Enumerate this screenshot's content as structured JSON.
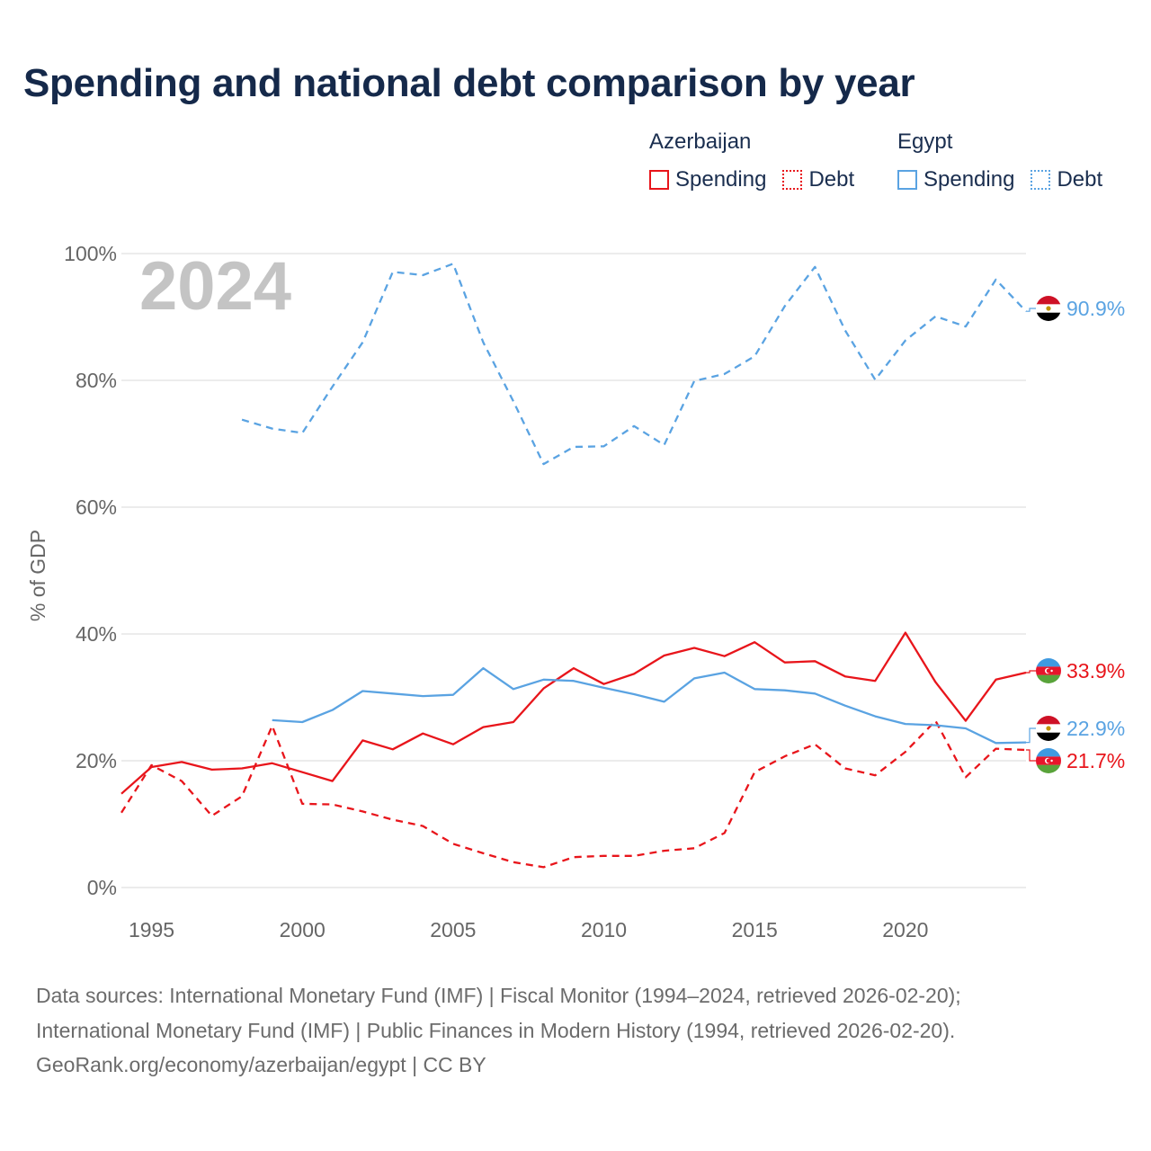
{
  "title": "Spending and national debt comparison by year",
  "legend": {
    "groups": [
      {
        "name": "Azerbaijan",
        "spending_label": "Spending",
        "debt_label": "Debt",
        "color": "#e8151b"
      },
      {
        "name": "Egypt",
        "spending_label": "Spending",
        "debt_label": "Debt",
        "color": "#5aa3e2"
      }
    ]
  },
  "year_watermark": "2024",
  "sources": {
    "line1": "Data sources: International Monetary Fund (IMF) | Fiscal Monitor (1994–2024, retrieved 2026-02-20);",
    "line2": "International Monetary Fund (IMF) | Public Finances in Modern History (1994, retrieved 2026-02-20).",
    "line3": "GeoRank.org/economy/azerbaijan/egypt | CC BY"
  },
  "chart_data": {
    "type": "line",
    "title": "Spending and national debt comparison by year",
    "xlabel": "",
    "ylabel": "% of GDP",
    "xlim": [
      1994,
      2024
    ],
    "ylim": [
      0,
      100
    ],
    "x_ticks": [
      1995,
      2000,
      2005,
      2010,
      2015,
      2020
    ],
    "y_ticks": [
      0,
      20,
      40,
      60,
      80,
      100
    ],
    "y_tick_labels": [
      "0%",
      "20%",
      "40%",
      "60%",
      "80%",
      "100%"
    ],
    "grid": true,
    "series": [
      {
        "name": "Azerbaijan Spending",
        "country": "Azerbaijan",
        "metric": "Spending",
        "color": "#e8151b",
        "dashed": false,
        "end_label": "33.9%",
        "x": [
          1994,
          1995,
          1996,
          1997,
          1998,
          1999,
          2000,
          2001,
          2002,
          2003,
          2004,
          2005,
          2006,
          2007,
          2008,
          2009,
          2010,
          2011,
          2012,
          2013,
          2014,
          2015,
          2016,
          2017,
          2018,
          2019,
          2020,
          2021,
          2022,
          2023,
          2024
        ],
        "values": [
          14.8,
          19.0,
          19.8,
          18.6,
          18.8,
          19.6,
          18.2,
          16.8,
          23.2,
          21.8,
          24.3,
          22.6,
          25.3,
          26.1,
          31.4,
          34.6,
          32.1,
          33.7,
          36.6,
          37.8,
          36.5,
          38.7,
          35.5,
          35.7,
          33.3,
          32.6,
          40.2,
          32.4,
          26.3,
          32.8,
          33.9
        ]
      },
      {
        "name": "Azerbaijan Debt",
        "country": "Azerbaijan",
        "metric": "Debt",
        "color": "#e8151b",
        "dashed": true,
        "end_label": "21.7%",
        "x": [
          1994,
          1995,
          1996,
          1997,
          1998,
          1999,
          2000,
          2001,
          2002,
          2003,
          2004,
          2005,
          2006,
          2007,
          2008,
          2009,
          2010,
          2011,
          2012,
          2013,
          2014,
          2015,
          2016,
          2017,
          2018,
          2019,
          2020,
          2021,
          2022,
          2023,
          2024
        ],
        "values": [
          11.8,
          19.3,
          16.8,
          11.3,
          14.4,
          25.5,
          13.2,
          13.1,
          12.0,
          10.7,
          9.7,
          6.9,
          5.4,
          4.0,
          3.2,
          4.8,
          5.0,
          5.0,
          5.8,
          6.2,
          8.6,
          18.2,
          20.7,
          22.6,
          18.8,
          17.7,
          21.4,
          26.3,
          17.4,
          21.9,
          21.7
        ]
      },
      {
        "name": "Egypt Spending",
        "country": "Egypt",
        "metric": "Spending",
        "color": "#5aa3e2",
        "dashed": false,
        "end_label": "22.9%",
        "x": [
          1999,
          2000,
          2001,
          2002,
          2003,
          2004,
          2005,
          2006,
          2007,
          2008,
          2009,
          2010,
          2011,
          2012,
          2013,
          2014,
          2015,
          2016,
          2017,
          2018,
          2019,
          2020,
          2021,
          2022,
          2023,
          2024
        ],
        "values": [
          26.4,
          26.1,
          28.0,
          31.0,
          30.6,
          30.2,
          30.4,
          34.6,
          31.3,
          32.8,
          32.6,
          31.5,
          30.5,
          29.3,
          33.0,
          33.9,
          31.3,
          31.1,
          30.6,
          28.7,
          27.0,
          25.8,
          25.6,
          25.1,
          22.8,
          22.9
        ]
      },
      {
        "name": "Egypt Debt",
        "country": "Egypt",
        "metric": "Debt",
        "color": "#5aa3e2",
        "dashed": true,
        "end_label": "90.9%",
        "x": [
          1998,
          1999,
          2000,
          2001,
          2002,
          2003,
          2004,
          2005,
          2006,
          2007,
          2008,
          2009,
          2010,
          2011,
          2012,
          2013,
          2014,
          2015,
          2016,
          2017,
          2018,
          2019,
          2020,
          2021,
          2022,
          2023,
          2024
        ],
        "values": [
          73.8,
          72.4,
          71.7,
          79.0,
          86.0,
          97.1,
          96.6,
          98.4,
          86.0,
          76.7,
          66.8,
          69.5,
          69.6,
          72.8,
          69.8,
          79.9,
          81.0,
          83.8,
          91.7,
          97.9,
          87.9,
          80.1,
          86.3,
          90.1,
          88.5,
          95.9,
          90.9
        ]
      }
    ]
  }
}
